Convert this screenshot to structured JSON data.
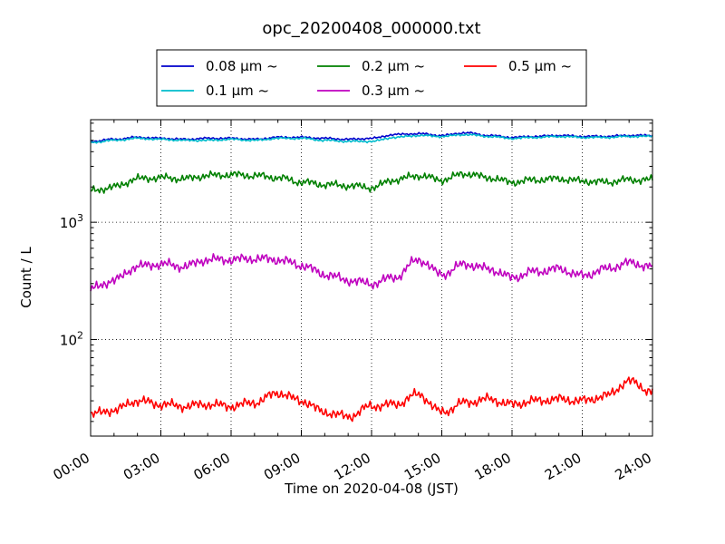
{
  "chart_data": {
    "type": "line",
    "title": "opc_20200408_000000.txt",
    "xlabel": "Time on 2020-04-08 (JST)",
    "ylabel": "Count / L",
    "xlim": [
      0,
      24
    ],
    "ylim": [
      15,
      7500
    ],
    "yscale": "log",
    "grid": true,
    "legend_position": "top-center",
    "x_ticks": [
      "00:00",
      "03:00",
      "06:00",
      "09:00",
      "12:00",
      "15:00",
      "18:00",
      "21:00",
      "24:00"
    ],
    "y_ticks": [
      {
        "value": 100,
        "base": "10",
        "exp": "2"
      },
      {
        "value": 1000,
        "base": "10",
        "exp": "3"
      }
    ],
    "series": [
      {
        "name": "0.08 µm ~",
        "color": "#0000cc",
        "x": [
          0,
          1,
          2,
          3,
          4,
          5,
          6,
          7,
          8,
          9,
          10,
          11,
          12,
          13,
          14,
          15,
          16,
          17,
          18,
          19,
          20,
          21,
          22,
          23,
          24
        ],
        "y": [
          4900,
          5100,
          5300,
          5200,
          5100,
          5200,
          5200,
          5100,
          5300,
          5300,
          5200,
          5100,
          5200,
          5600,
          5700,
          5500,
          5800,
          5500,
          5300,
          5400,
          5500,
          5400,
          5400,
          5500,
          5500
        ]
      },
      {
        "name": "0.1 µm ~",
        "color": "#00bbcc",
        "x": [
          0,
          1,
          2,
          3,
          4,
          5,
          6,
          7,
          8,
          9,
          10,
          11,
          12,
          13,
          14,
          15,
          16,
          17,
          18,
          19,
          20,
          21,
          22,
          23,
          24
        ],
        "y": [
          4800,
          5000,
          5200,
          5100,
          5000,
          5000,
          5100,
          5000,
          5200,
          5200,
          5000,
          4900,
          4900,
          5300,
          5500,
          5400,
          5600,
          5400,
          5200,
          5300,
          5400,
          5300,
          5300,
          5400,
          5400
        ]
      },
      {
        "name": "0.2 µm ~",
        "color": "#008000",
        "x": [
          0,
          1,
          2,
          3,
          4,
          5,
          6,
          7,
          8,
          9,
          10,
          11,
          12,
          13,
          14,
          15,
          16,
          17,
          18,
          19,
          20,
          21,
          22,
          23,
          24
        ],
        "y": [
          1850,
          2000,
          2350,
          2400,
          2350,
          2500,
          2550,
          2500,
          2400,
          2200,
          2100,
          2050,
          1980,
          2300,
          2500,
          2300,
          2600,
          2400,
          2200,
          2300,
          2350,
          2250,
          2200,
          2300,
          2300
        ]
      },
      {
        "name": "0.3 µm ~",
        "color": "#bf00bf",
        "x": [
          0,
          1,
          2,
          3,
          4,
          5,
          6,
          7,
          8,
          9,
          10,
          11,
          12,
          13,
          14,
          15,
          16,
          17,
          18,
          19,
          20,
          21,
          22,
          23,
          24
        ],
        "y": [
          270,
          320,
          420,
          440,
          420,
          480,
          480,
          490,
          480,
          430,
          360,
          320,
          300,
          340,
          480,
          360,
          440,
          400,
          340,
          380,
          400,
          350,
          400,
          450,
          420
        ]
      },
      {
        "name": "0.5 µm ~",
        "color": "#ff0000",
        "x": [
          0,
          1,
          2,
          3,
          4,
          5,
          6,
          7,
          8,
          9,
          10,
          11,
          12,
          13,
          14,
          15,
          16,
          17,
          18,
          19,
          20,
          21,
          22,
          23,
          24
        ],
        "y": [
          23,
          25,
          30,
          28,
          27,
          28,
          27,
          29,
          35,
          30,
          24,
          22,
          27,
          28,
          34,
          24,
          29,
          31,
          28,
          30,
          31,
          30,
          33,
          44,
          36
        ]
      }
    ]
  }
}
